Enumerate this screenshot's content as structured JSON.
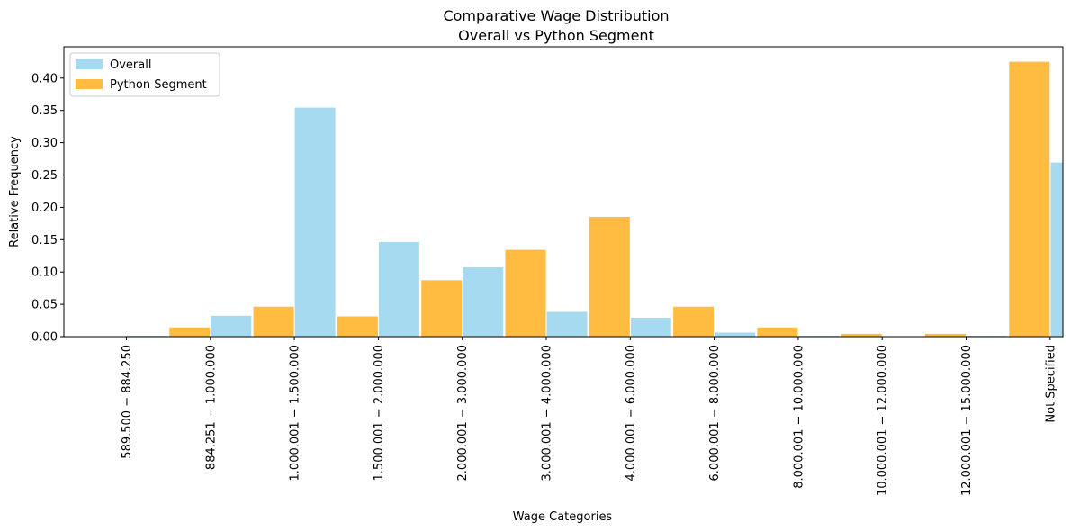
{
  "chart_data": {
    "type": "bar",
    "title_line1": "Comparative Wage Distribution",
    "title_line2": "Overall vs Python Segment",
    "xlabel": "Wage Categories",
    "ylabel": "Relative Frequency",
    "ylim": [
      0,
      0.44
    ],
    "yticks": [
      "0.00",
      "0.05",
      "0.10",
      "0.15",
      "0.20",
      "0.25",
      "0.30",
      "0.35",
      "0.40"
    ],
    "categories": [
      "589.500 − 884.250",
      "884.251 − 1.000.000",
      "1.000.001 − 1.500.000",
      "1.500.001 − 2.000.000",
      "2.000.001 − 3.000.000",
      "3.000.001 − 4.000.000",
      "4.000.001 − 6.000.000",
      "6.000.001 − 8.000.000",
      "8.000.001 − 10.000.000",
      "10.000.001 − 12.000.000",
      "12.000.001 − 15.000.000",
      "Not Specified"
    ],
    "series": [
      {
        "name": "Overall",
        "color": "#87CEEB",
        "values": [
          0.002,
          0.033,
          0.355,
          0.147,
          0.108,
          0.039,
          0.03,
          0.007,
          0.002,
          0.001,
          0.002,
          0.27
        ]
      },
      {
        "name": "Python Segment",
        "color": "#FFA500",
        "values": [
          0.0,
          0.015,
          0.047,
          0.032,
          0.088,
          0.135,
          0.186,
          0.047,
          0.015,
          0.005,
          0.005,
          0.426
        ]
      }
    ],
    "legend_position": "upper-left",
    "grid": false
  }
}
